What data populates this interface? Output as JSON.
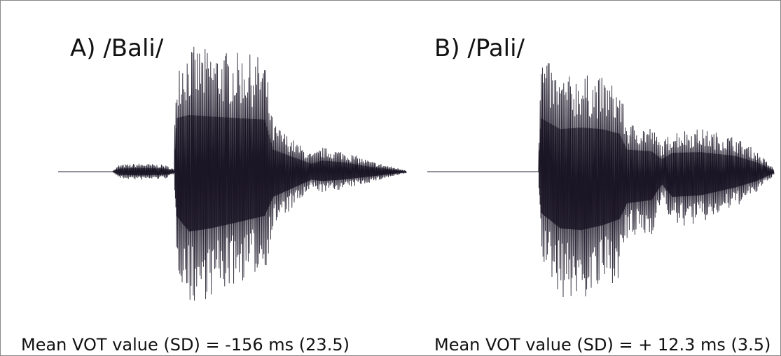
{
  "panels": [
    {
      "label": "A) /Bali/",
      "caption": "Mean VOT value (SD) = -156 ms (23.5)"
    },
    {
      "label": "B) /Pali/",
      "caption": "Mean VOT value (SD) = + 12.3 ms (3.5)"
    }
  ]
}
